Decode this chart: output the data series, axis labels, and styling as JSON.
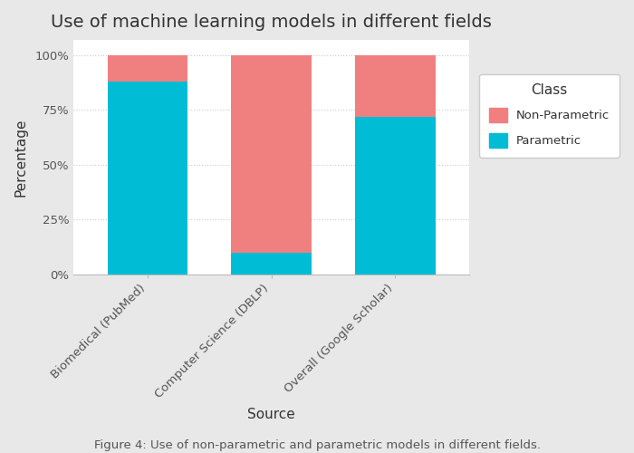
{
  "title": "Use of machine learning models in different fields",
  "xlabel": "Source",
  "ylabel": "Percentage",
  "caption": "Figure 4: Use of non-parametric and parametric models in different fields.",
  "categories": [
    "Biomedical (PubMed)",
    "Computer Science (DBLP)",
    "Overall (Google Scholar)"
  ],
  "parametric": [
    88,
    10,
    72
  ],
  "non_parametric": [
    12,
    90,
    28
  ],
  "color_parametric": "#00BCD4",
  "color_non_parametric": "#F08080",
  "figure_bg_color": "#E8E8E8",
  "plot_bg_color": "#FFFFFF",
  "legend_bg_color": "#FFFFFF",
  "bar_width": 0.65,
  "yticks": [
    0,
    25,
    50,
    75,
    100
  ],
  "ytick_labels": [
    "0%",
    "25%",
    "50%",
    "75%",
    "100%"
  ],
  "legend_title": "Class",
  "legend_labels": [
    "Non-Parametric",
    "Parametric"
  ],
  "title_fontsize": 14,
  "label_fontsize": 11,
  "tick_fontsize": 9.5,
  "caption_fontsize": 9.5
}
